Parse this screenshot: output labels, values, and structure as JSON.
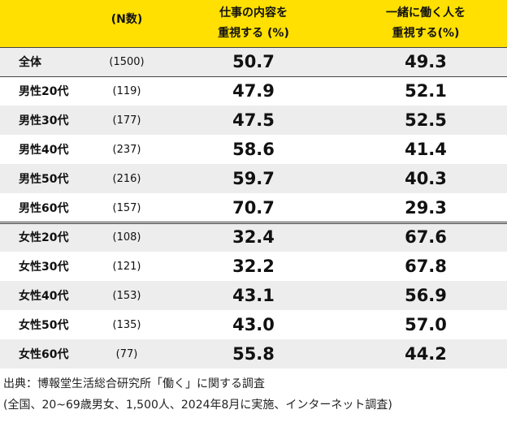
{
  "header": {
    "n_label": "(N数)",
    "col1_line1": "仕事の内容を",
    "col1_line2": "重視する (%)",
    "col2_line1": "一緒に働く人を",
    "col2_line2": "重視する(%)"
  },
  "rows": [
    {
      "label": "全体",
      "n": "(1500)",
      "v1": "50.7",
      "v2": "49.3"
    },
    {
      "label": "男性20代",
      "n": "(119)",
      "v1": "47.9",
      "v2": "52.1"
    },
    {
      "label": "男性30代",
      "n": "(177)",
      "v1": "47.5",
      "v2": "52.5"
    },
    {
      "label": "男性40代",
      "n": "(237)",
      "v1": "58.6",
      "v2": "41.4"
    },
    {
      "label": "男性50代",
      "n": "(216)",
      "v1": "59.7",
      "v2": "40.3"
    },
    {
      "label": "男性60代",
      "n": "(157)",
      "v1": "70.7",
      "v2": "29.3"
    },
    {
      "label": "女性20代",
      "n": "(108)",
      "v1": "32.4",
      "v2": "67.6"
    },
    {
      "label": "女性30代",
      "n": "(121)",
      "v1": "32.2",
      "v2": "67.8"
    },
    {
      "label": "女性40代",
      "n": "(153)",
      "v1": "43.1",
      "v2": "56.9"
    },
    {
      "label": "女性50代",
      "n": "(135)",
      "v1": "43.0",
      "v2": "57.0"
    },
    {
      "label": "女性60代",
      "n": "(77)",
      "v1": "55.8",
      "v2": "44.2"
    }
  ],
  "footer": {
    "source": "出典：博報堂生活総合研究所「働く」に関する調査",
    "note": "(全国、20~69歳男女、1,500人、2024年8月に実施、インターネット調査)"
  },
  "colors": {
    "header_bg": "#ffe000",
    "shade": "#ededed"
  }
}
